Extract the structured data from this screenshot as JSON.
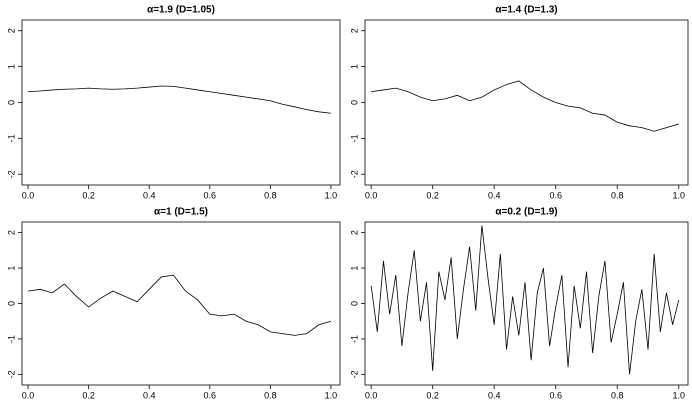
{
  "chart_data": [
    {
      "type": "line",
      "title": "α=1.9 (D=1.05)",
      "color": "#000000",
      "x": [
        0,
        0.04,
        0.08,
        0.12,
        0.16,
        0.2,
        0.24,
        0.28,
        0.32,
        0.36,
        0.4,
        0.44,
        0.48,
        0.52,
        0.56,
        0.6,
        0.64,
        0.68,
        0.72,
        0.76,
        0.8,
        0.84,
        0.88,
        0.92,
        0.96,
        1
      ],
      "values": [
        0.3,
        0.32,
        0.35,
        0.37,
        0.38,
        0.4,
        0.38,
        0.37,
        0.38,
        0.4,
        0.43,
        0.46,
        0.45,
        0.4,
        0.35,
        0.3,
        0.25,
        0.2,
        0.15,
        0.1,
        0.05,
        -0.05,
        -0.12,
        -0.2,
        -0.26,
        -0.3
      ],
      "xlim": [
        -0.02,
        1.03
      ],
      "ylim": [
        -2.3,
        2.3
      ],
      "xticks": [
        {
          "value": 0,
          "label": "0.0"
        },
        0.2,
        0.4,
        0.6,
        0.8,
        {
          "value": 1,
          "label": "1.0"
        }
      ],
      "yticks": [
        -2,
        -1,
        0,
        1,
        2
      ]
    },
    {
      "type": "line",
      "title": "α=1.4 (D=1.3)",
      "color": "#000000",
      "x": [
        0,
        0.04,
        0.08,
        0.12,
        0.16,
        0.2,
        0.24,
        0.28,
        0.32,
        0.36,
        0.4,
        0.44,
        0.48,
        0.52,
        0.56,
        0.6,
        0.64,
        0.68,
        0.72,
        0.76,
        0.8,
        0.84,
        0.88,
        0.92,
        0.96,
        1
      ],
      "values": [
        0.3,
        0.35,
        0.4,
        0.3,
        0.15,
        0.05,
        0.1,
        0.2,
        0.05,
        0.15,
        0.35,
        0.5,
        0.6,
        0.35,
        0.15,
        0.0,
        -0.1,
        -0.15,
        -0.3,
        -0.35,
        -0.55,
        -0.65,
        -0.7,
        -0.8,
        -0.7,
        -0.6
      ],
      "xlim": [
        -0.02,
        1.03
      ],
      "ylim": [
        -2.3,
        2.3
      ],
      "xticks": [
        {
          "value": 0,
          "label": "0.0"
        },
        0.2,
        0.4,
        0.6,
        0.8,
        {
          "value": 1,
          "label": "1.0"
        }
      ],
      "yticks": [
        -2,
        -1,
        0,
        1,
        2
      ]
    },
    {
      "type": "line",
      "title": "α=1 (D=1.5)",
      "color": "#000000",
      "x": [
        0,
        0.04,
        0.08,
        0.12,
        0.16,
        0.2,
        0.24,
        0.28,
        0.32,
        0.36,
        0.4,
        0.44,
        0.48,
        0.52,
        0.56,
        0.6,
        0.64,
        0.68,
        0.72,
        0.76,
        0.8,
        0.84,
        0.88,
        0.92,
        0.96,
        1
      ],
      "values": [
        0.35,
        0.4,
        0.3,
        0.55,
        0.2,
        -0.1,
        0.15,
        0.35,
        0.2,
        0.05,
        0.4,
        0.75,
        0.8,
        0.35,
        0.1,
        -0.3,
        -0.35,
        -0.3,
        -0.5,
        -0.6,
        -0.8,
        -0.85,
        -0.9,
        -0.85,
        -0.6,
        -0.5
      ],
      "xlim": [
        -0.02,
        1.03
      ],
      "ylim": [
        -2.3,
        2.3
      ],
      "xticks": [
        {
          "value": 0,
          "label": "0.0"
        },
        0.2,
        0.4,
        0.6,
        0.8,
        {
          "value": 1,
          "label": "1.0"
        }
      ],
      "yticks": [
        -2,
        -1,
        0,
        1,
        2
      ]
    },
    {
      "type": "line",
      "title": "α=0.2 (D=1.9)",
      "color": "#000000",
      "x": [
        0,
        0.02,
        0.04,
        0.06,
        0.08,
        0.1,
        0.12,
        0.14,
        0.16,
        0.18,
        0.2,
        0.22,
        0.24,
        0.26,
        0.28,
        0.3,
        0.32,
        0.34,
        0.36,
        0.38,
        0.4,
        0.42,
        0.44,
        0.46,
        0.48,
        0.5,
        0.52,
        0.54,
        0.56,
        0.58,
        0.6,
        0.62,
        0.64,
        0.66,
        0.68,
        0.7,
        0.72,
        0.74,
        0.76,
        0.78,
        0.8,
        0.82,
        0.84,
        0.86,
        0.88,
        0.9,
        0.92,
        0.94,
        0.96,
        0.98,
        1
      ],
      "values": [
        0.5,
        -0.8,
        1.2,
        -0.3,
        0.8,
        -1.2,
        0.3,
        1.5,
        -0.5,
        0.6,
        -1.9,
        0.9,
        0.1,
        1.3,
        -1.0,
        0.4,
        1.6,
        -0.2,
        2.2,
        0.7,
        -0.6,
        1.4,
        -1.3,
        0.2,
        -0.9,
        0.6,
        -1.6,
        0.3,
        1.0,
        -1.2,
        -0.1,
        0.8,
        -1.8,
        0.5,
        -0.7,
        0.9,
        -1.4,
        0.2,
        1.2,
        -1.1,
        -0.3,
        0.6,
        -2.0,
        -0.5,
        0.4,
        -1.3,
        1.4,
        -0.8,
        0.3,
        -0.6,
        0.1
      ],
      "xlim": [
        -0.02,
        1.03
      ],
      "ylim": [
        -2.3,
        2.3
      ],
      "xticks": [
        {
          "value": 0,
          "label": "0.0"
        },
        0.2,
        0.4,
        0.6,
        0.8,
        {
          "value": 1,
          "label": "1.0"
        }
      ],
      "yticks": [
        -2,
        -1,
        0,
        1,
        2
      ]
    }
  ]
}
